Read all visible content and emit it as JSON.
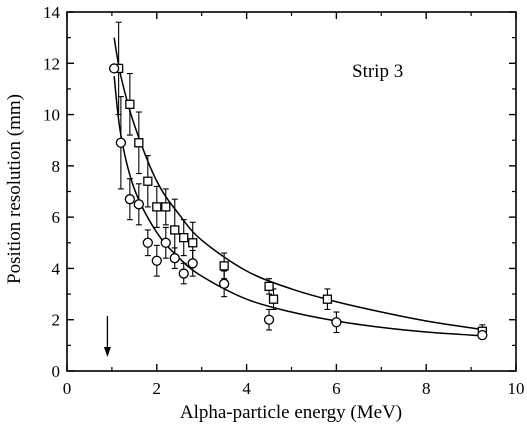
{
  "chart_data": {
    "type": "scatter",
    "xlabel": "Alpha-particle energy (MeV)",
    "ylabel": "Position resolution (mm)",
    "xlim": [
      0,
      10
    ],
    "ylim": [
      0,
      14
    ],
    "xticks": [
      "0",
      "2",
      "4",
      "6",
      "8",
      "10"
    ],
    "yticks": [
      "0",
      "2",
      "4",
      "6",
      "8",
      "10",
      "12",
      "14"
    ],
    "grid": false,
    "annotation": "Strip 3",
    "arrow_x": 0.9,
    "series": [
      {
        "marker": "square",
        "points": [
          {
            "x": 1.15,
            "y": 11.8,
            "err": 1.8
          },
          {
            "x": 1.4,
            "y": 10.4,
            "err": 1.2
          },
          {
            "x": 1.6,
            "y": 8.9,
            "err": 1.2
          },
          {
            "x": 1.8,
            "y": 7.4,
            "err": 1.0
          },
          {
            "x": 2.0,
            "y": 6.4,
            "err": 0.8
          },
          {
            "x": 2.2,
            "y": 6.4,
            "err": 0.7
          },
          {
            "x": 2.4,
            "y": 5.5,
            "err": 1.2
          },
          {
            "x": 2.6,
            "y": 5.2,
            "err": 0.7
          },
          {
            "x": 2.8,
            "y": 5.0,
            "err": 0.8
          },
          {
            "x": 3.5,
            "y": 4.1,
            "err": 0.5
          },
          {
            "x": 4.5,
            "y": 3.3,
            "err": 0.3
          },
          {
            "x": 4.6,
            "y": 2.8,
            "err": 0.4
          },
          {
            "x": 5.8,
            "y": 2.8,
            "err": 0.4
          },
          {
            "x": 9.25,
            "y": 1.55,
            "err": 0.25
          }
        ],
        "fit": [
          [
            1.05,
            13.0
          ],
          [
            1.2,
            11.5
          ],
          [
            1.5,
            9.6
          ],
          [
            2.0,
            7.4
          ],
          [
            2.5,
            6.1
          ],
          [
            3.0,
            5.1
          ],
          [
            4.0,
            3.9
          ],
          [
            5.0,
            3.2
          ],
          [
            6.0,
            2.7
          ],
          [
            7.0,
            2.3
          ],
          [
            8.0,
            1.95
          ],
          [
            9.0,
            1.68
          ],
          [
            9.3,
            1.6
          ]
        ]
      },
      {
        "marker": "circle",
        "points": [
          {
            "x": 1.05,
            "y": 11.8,
            "err": 0.0
          },
          {
            "x": 1.2,
            "y": 8.9,
            "err": 1.8
          },
          {
            "x": 1.4,
            "y": 6.7,
            "err": 0.8
          },
          {
            "x": 1.6,
            "y": 6.5,
            "err": 0.8
          },
          {
            "x": 1.8,
            "y": 5.0,
            "err": 0.5
          },
          {
            "x": 2.0,
            "y": 4.3,
            "err": 0.6
          },
          {
            "x": 2.2,
            "y": 5.0,
            "err": 0.6
          },
          {
            "x": 2.4,
            "y": 4.4,
            "err": 0.4
          },
          {
            "x": 2.6,
            "y": 3.8,
            "err": 0.4
          },
          {
            "x": 2.8,
            "y": 4.2,
            "err": 0.5
          },
          {
            "x": 3.5,
            "y": 3.4,
            "err": 0.5
          },
          {
            "x": 4.5,
            "y": 2.0,
            "err": 0.4
          },
          {
            "x": 6.0,
            "y": 1.9,
            "err": 0.4
          },
          {
            "x": 9.25,
            "y": 1.4,
            "err": 0.15
          }
        ],
        "fit": [
          [
            1.05,
            11.5
          ],
          [
            1.2,
            9.2
          ],
          [
            1.5,
            7.1
          ],
          [
            2.0,
            5.4
          ],
          [
            2.5,
            4.4
          ],
          [
            3.0,
            3.7
          ],
          [
            4.0,
            2.8
          ],
          [
            5.0,
            2.3
          ],
          [
            6.0,
            1.95
          ],
          [
            7.0,
            1.7
          ],
          [
            8.0,
            1.52
          ],
          [
            9.0,
            1.4
          ],
          [
            9.3,
            1.37
          ]
        ]
      }
    ]
  }
}
